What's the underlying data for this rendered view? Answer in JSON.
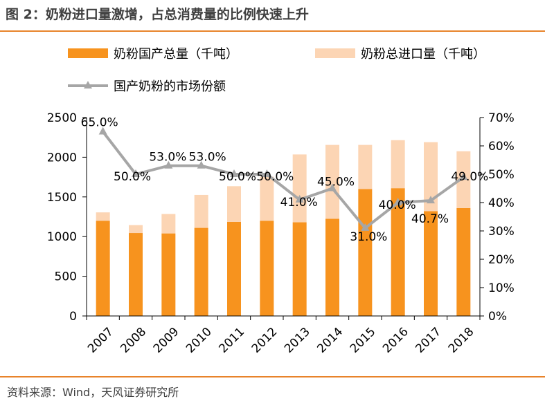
{
  "title": "图 2：奶粉进口量激增，占总消费量的比例快速上升",
  "source": "资料来源：Wind，天风证券研究所",
  "colors": {
    "domestic": "#F7931E",
    "imports": "#FCD5B4",
    "share": "#A6A6A6",
    "rule": "#E8832A"
  },
  "chart_data": {
    "type": "bar",
    "stacked": true,
    "categories": [
      "2007",
      "2008",
      "2009",
      "2010",
      "2011",
      "2012",
      "2013",
      "2014",
      "2015",
      "2016",
      "2017",
      "2018"
    ],
    "series": [
      {
        "name": "奶粉国产总量（千吨）",
        "axis": "left",
        "kind": "bar",
        "values": [
          1200,
          1045,
          1040,
          1110,
          1185,
          1200,
          1180,
          1225,
          1600,
          1610,
          1320,
          1360
        ]
      },
      {
        "name": "奶粉总进口量（千吨）",
        "axis": "left",
        "kind": "bar",
        "values": [
          105,
          100,
          245,
          415,
          450,
          555,
          855,
          930,
          555,
          605,
          870,
          715
        ]
      },
      {
        "name": "国产奶粉的市场份额",
        "axis": "right",
        "kind": "line",
        "values": [
          65.0,
          50.0,
          53.0,
          53.0,
          50.0,
          50.0,
          41.0,
          45.0,
          31.0,
          40.0,
          40.7,
          49.0
        ],
        "labels": [
          "65.0%",
          "50.0%",
          "53.0%",
          "53.0%",
          "50.0%",
          "50.0%",
          "41.0%",
          "45.0%",
          "31.0%",
          "40.0%",
          "40.7%",
          "49.0%"
        ]
      }
    ],
    "y_left": {
      "ylim": [
        0,
        2500
      ],
      "ticks": [
        "0",
        "500",
        "1000",
        "1500",
        "2000",
        "2500"
      ]
    },
    "y_right": {
      "ylim": [
        0,
        70
      ],
      "ticks": [
        "0%",
        "10%",
        "20%",
        "30%",
        "40%",
        "50%",
        "60%",
        "70%"
      ]
    },
    "legend_position": "top",
    "grid": false
  }
}
